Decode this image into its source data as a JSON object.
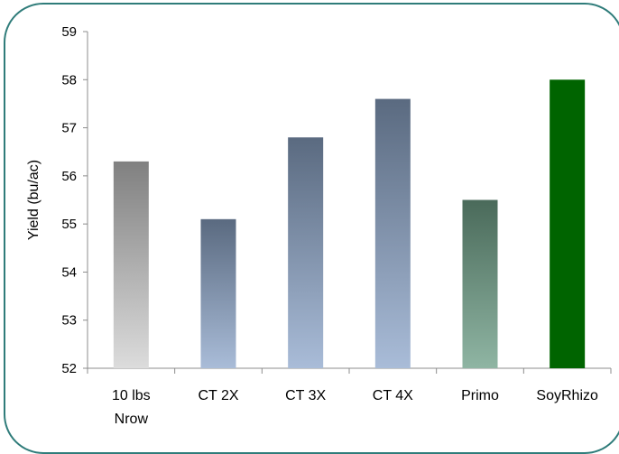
{
  "chart_data": {
    "type": "bar",
    "title": "",
    "xlabel": "",
    "ylabel": "Yield (bu/ac)",
    "ylim": [
      52,
      59
    ],
    "yticks": [
      "52",
      "53",
      "54",
      "55",
      "56",
      "57",
      "58",
      "59"
    ],
    "grid": false,
    "legend": "none",
    "categories": [
      {
        "lines": [
          "10 lbs",
          "Nrow"
        ]
      },
      {
        "lines": [
          "CT 2X"
        ]
      },
      {
        "lines": [
          "CT 3X"
        ]
      },
      {
        "lines": [
          "CT 4X"
        ]
      },
      {
        "lines": [
          "Primo"
        ]
      },
      {
        "lines": [
          "SoyRhizo"
        ]
      }
    ],
    "values": [
      56.3,
      55.1,
      56.8,
      57.6,
      55.5,
      58.0
    ],
    "bar_colors": [
      {
        "top": "#808080",
        "bottom": "#dcdcdc"
      },
      {
        "top": "#5a6a80",
        "bottom": "#a9bcd8"
      },
      {
        "top": "#5a6a80",
        "bottom": "#a9bcd8"
      },
      {
        "top": "#5a6a80",
        "bottom": "#a9bcd8"
      },
      {
        "top": "#4a6a5a",
        "bottom": "#8fb5a3"
      },
      {
        "top": "#006400",
        "bottom": "#006400"
      }
    ],
    "frame_color": "#2f7c7a"
  }
}
